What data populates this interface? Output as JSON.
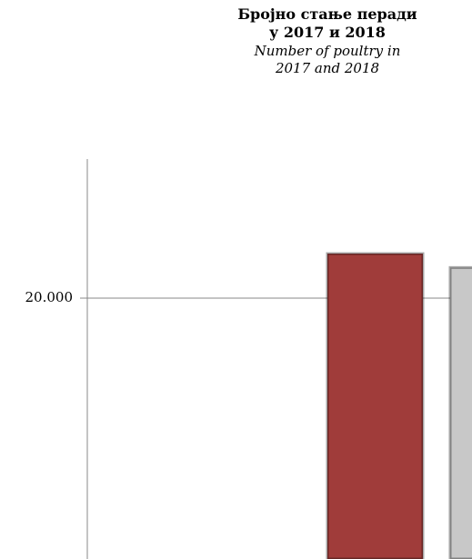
{
  "chart_data": {
    "type": "bar",
    "title": "Бројно стање перади у 2017 и 2018",
    "subtitle": "Number of poultry in 2017 and 2018",
    "categories": [
      null
    ],
    "series": [
      {
        "color": "#a03c3a",
        "values": [
          21600
        ]
      },
      {
        "color": "#c8c8c8",
        "values": [
          21100
        ]
      }
    ],
    "ylim": [
      10620,
      25000
    ],
    "yticks": [
      {
        "value": 20000,
        "label": "20.000"
      }
    ],
    "grid": true
  }
}
